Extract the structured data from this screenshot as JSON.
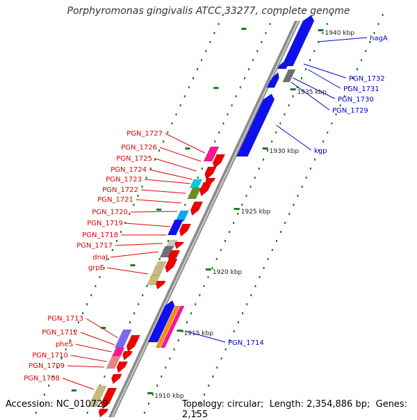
{
  "title": "Porphyromonas gingivalis ATCC 33277, complete genome",
  "footer": {
    "accession_label": "Accession:",
    "accession": "NC_010729",
    "topology_label": "Topology:",
    "topology": "circular",
    "length_label": "Length:",
    "length": "2,354,886 bp",
    "genes_label": "Genes:",
    "genes": "2,155"
  },
  "colors": {
    "backbone": "#8c8c8c",
    "forward_label": "#0000cc",
    "reverse_label": "#dd0000",
    "tick": "#1a7a1a"
  },
  "ruler": [
    "1910 kbp",
    "1915 kbp",
    "1920 kbp",
    "1925 kbp",
    "1930 kbp",
    "1935 kbp",
    "1940 kbp"
  ],
  "forward_labels": [
    "hagA",
    "PGN_1732",
    "PGN_1731",
    "PGN_1730",
    "PGN_1729",
    "kgp",
    "PGN_1714"
  ],
  "reverse_labels": [
    "PGN_1727",
    "PGN_1726",
    "PGN_1725",
    "PGN_1724",
    "PGN_1723",
    "PGN_1722",
    "PGN_1721",
    "PGN_1720",
    "PGN_1719",
    "PGN_1718",
    "PGN_1717",
    "dnaJ",
    "grpE",
    "PGN_1713",
    "PGN_1712",
    "pheS",
    "PGN_1710",
    "PGN_1709",
    "PGN_1708"
  ]
}
